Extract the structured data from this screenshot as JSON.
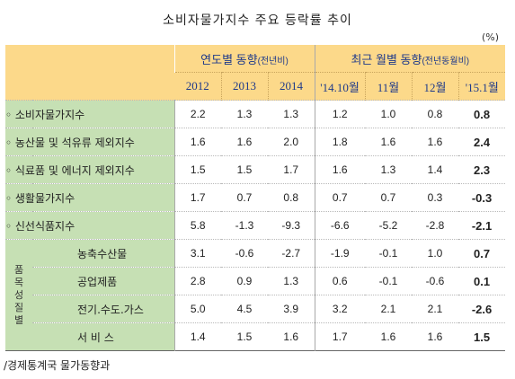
{
  "title": "소비자물가지수 주요 등락률 추이",
  "unit": "(%)",
  "header": {
    "annual_group": "연도별 동향",
    "annual_group_note": "(전년비)",
    "monthly_group": "최근 월별 동향",
    "monthly_group_note": "(전년동월비)",
    "columns": [
      "2012",
      "2013",
      "2014",
      "'14.10월",
      "11월",
      "12월",
      "'15.1월"
    ]
  },
  "group_label": "품목성질별",
  "rows": [
    {
      "label": "◦ 소비자물가지수",
      "values": [
        "2.2",
        "1.3",
        "1.3",
        "1.2",
        "1.0",
        "0.8",
        "0.8"
      ]
    },
    {
      "label": "◦ 농산물 및 석유류 제외지수",
      "values": [
        "1.6",
        "1.6",
        "2.0",
        "1.8",
        "1.6",
        "1.6",
        "2.4"
      ]
    },
    {
      "label": "◦ 식료품 및 에너지 제외지수",
      "values": [
        "1.5",
        "1.5",
        "1.7",
        "1.6",
        "1.3",
        "1.4",
        "2.3"
      ]
    },
    {
      "label": "◦ 생활물가지수",
      "values": [
        "1.7",
        "0.7",
        "0.8",
        "0.7",
        "0.7",
        "0.3",
        "-0.3"
      ]
    },
    {
      "label": "◦ 신선식품지수",
      "values": [
        "5.8",
        "-1.3",
        "-9.3",
        "-6.6",
        "-5.2",
        "-2.8",
        "-2.1"
      ]
    },
    {
      "label": "농축수산물",
      "values": [
        "3.1",
        "-0.6",
        "-2.7",
        "-1.9",
        "-0.1",
        "1.0",
        "0.7"
      ]
    },
    {
      "label": "공업제품",
      "values": [
        "2.8",
        "0.9",
        "1.3",
        "0.6",
        "-0.1",
        "-0.6",
        "0.1"
      ]
    },
    {
      "label": "전기.수도.가스",
      "values": [
        "5.0",
        "4.5",
        "3.9",
        "3.2",
        "2.1",
        "2.1",
        "-2.6"
      ]
    },
    {
      "label": "서 비 스",
      "values": [
        "1.4",
        "1.5",
        "1.6",
        "1.7",
        "1.6",
        "1.6",
        "1.5"
      ]
    }
  ],
  "source": "/경제통계국 물가동향과"
}
